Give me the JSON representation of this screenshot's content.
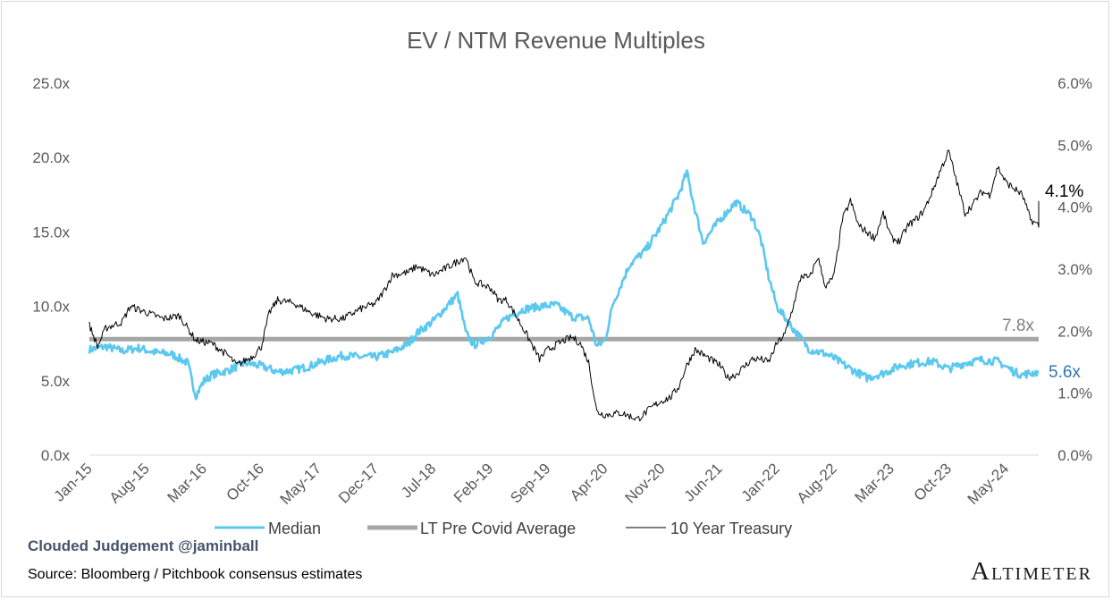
{
  "chart_data": {
    "type": "line",
    "title": "EV / NTM Revenue Multiples",
    "xlabel": "",
    "ylabel": "",
    "x_start": "Jan-15",
    "x_end": "Sep-24",
    "x_tick_labels": [
      "Jan-15",
      "Aug-15",
      "Mar-16",
      "Oct-16",
      "May-17",
      "Dec-17",
      "Jul-18",
      "Feb-19",
      "Sep-19",
      "Apr-20",
      "Nov-20",
      "Jun-21",
      "Jan-22",
      "Aug-22",
      "Mar-23",
      "Oct-23",
      "May-24"
    ],
    "y_left": {
      "range": [
        0,
        25
      ],
      "ticks": [
        "0.0x",
        "5.0x",
        "10.0x",
        "15.0x",
        "20.0x",
        "25.0x"
      ]
    },
    "y_right": {
      "range": [
        0,
        6
      ],
      "ticks": [
        "0.0%",
        "1.0%",
        "2.0%",
        "3.0%",
        "4.0%",
        "5.0%",
        "6.0%"
      ]
    },
    "grid": false,
    "legend_position": "bottom",
    "series": [
      {
        "name": "Median",
        "axis": "left",
        "color": "#5bc8ef",
        "points": [
          [
            "Jan-15",
            7.1
          ],
          [
            "Mar-15",
            7.3
          ],
          [
            "May-15",
            7.0
          ],
          [
            "Jul-15",
            7.2
          ],
          [
            "Sep-15",
            6.9
          ],
          [
            "Nov-15",
            6.8
          ],
          [
            "Jan-16",
            6.2
          ],
          [
            "Feb-16",
            4.0
          ],
          [
            "Mar-16",
            5.0
          ],
          [
            "Apr-16",
            5.4
          ],
          [
            "Jun-16",
            5.7
          ],
          [
            "Aug-16",
            6.2
          ],
          [
            "Oct-16",
            6.0
          ],
          [
            "Dec-16",
            5.6
          ],
          [
            "Feb-17",
            5.7
          ],
          [
            "Apr-17",
            6.0
          ],
          [
            "Jun-17",
            6.4
          ],
          [
            "Aug-17",
            6.7
          ],
          [
            "Oct-17",
            6.6
          ],
          [
            "Dec-17",
            6.6
          ],
          [
            "Feb-18",
            6.9
          ],
          [
            "Apr-18",
            7.5
          ],
          [
            "May-18",
            8.2
          ],
          [
            "Jul-18",
            9.0
          ],
          [
            "Sep-18",
            10.2
          ],
          [
            "Oct-18",
            10.8
          ],
          [
            "Nov-18",
            8.2
          ],
          [
            "Dec-18",
            7.4
          ],
          [
            "Feb-19",
            8.0
          ],
          [
            "Apr-19",
            9.2
          ],
          [
            "Jun-19",
            9.8
          ],
          [
            "Aug-19",
            10.0
          ],
          [
            "Oct-19",
            10.1
          ],
          [
            "Dec-19",
            9.3
          ],
          [
            "Feb-20",
            9.2
          ],
          [
            "Mar-20",
            7.3
          ],
          [
            "Apr-20",
            7.7
          ],
          [
            "May-20",
            10.2
          ],
          [
            "Jul-20",
            12.8
          ],
          [
            "Sep-20",
            13.8
          ],
          [
            "Nov-20",
            15.5
          ],
          [
            "Jan-21",
            17.5
          ],
          [
            "Feb-21",
            19.0
          ],
          [
            "Mar-21",
            16.5
          ],
          [
            "Apr-21",
            14.3
          ],
          [
            "Jun-21",
            15.8
          ],
          [
            "Aug-21",
            17.0
          ],
          [
            "Oct-21",
            16.0
          ],
          [
            "Nov-21",
            14.6
          ],
          [
            "Dec-21",
            12.0
          ],
          [
            "Jan-22",
            10.0
          ],
          [
            "Mar-22",
            8.5
          ],
          [
            "May-22",
            7.1
          ],
          [
            "Jul-22",
            6.8
          ],
          [
            "Aug-22",
            6.5
          ],
          [
            "Oct-22",
            5.8
          ],
          [
            "Dec-22",
            5.2
          ],
          [
            "Feb-23",
            5.5
          ],
          [
            "Apr-23",
            6.0
          ],
          [
            "Jun-23",
            6.2
          ],
          [
            "Aug-23",
            6.3
          ],
          [
            "Oct-23",
            5.8
          ],
          [
            "Dec-23",
            6.2
          ],
          [
            "Feb-24",
            6.4
          ],
          [
            "Apr-24",
            6.3
          ],
          [
            "Jun-24",
            5.6
          ],
          [
            "Jul-24",
            5.4
          ],
          [
            "Sep-24",
            5.6
          ]
        ]
      },
      {
        "name": "LT Pre Covid Average",
        "axis": "left",
        "color": "#a6a6a6",
        "points": [
          [
            "Jan-15",
            7.8
          ],
          [
            "Sep-24",
            7.8
          ]
        ]
      },
      {
        "name": "10 Year Treasury",
        "axis": "right",
        "color": "#000000",
        "points": [
          [
            "Jan-15",
            2.1
          ],
          [
            "Feb-15",
            1.75
          ],
          [
            "Mar-15",
            2.05
          ],
          [
            "May-15",
            2.15
          ],
          [
            "Jun-15",
            2.4
          ],
          [
            "Aug-15",
            2.3
          ],
          [
            "Oct-15",
            2.2
          ],
          [
            "Dec-15",
            2.25
          ],
          [
            "Feb-16",
            1.85
          ],
          [
            "Apr-16",
            1.8
          ],
          [
            "Jun-16",
            1.6
          ],
          [
            "Jul-16",
            1.45
          ],
          [
            "Sep-16",
            1.6
          ],
          [
            "Oct-16",
            1.75
          ],
          [
            "Nov-16",
            2.3
          ],
          [
            "Dec-16",
            2.5
          ],
          [
            "Feb-17",
            2.45
          ],
          [
            "Apr-17",
            2.3
          ],
          [
            "Jun-17",
            2.2
          ],
          [
            "Aug-17",
            2.2
          ],
          [
            "Oct-17",
            2.35
          ],
          [
            "Dec-17",
            2.45
          ],
          [
            "Jan-18",
            2.65
          ],
          [
            "Feb-18",
            2.9
          ],
          [
            "Apr-18",
            2.95
          ],
          [
            "May-18",
            3.05
          ],
          [
            "Jul-18",
            2.9
          ],
          [
            "Sep-18",
            3.05
          ],
          [
            "Nov-18",
            3.2
          ],
          [
            "Dec-18",
            2.8
          ],
          [
            "Feb-19",
            2.7
          ],
          [
            "Mar-19",
            2.5
          ],
          [
            "Apr-19",
            2.5
          ],
          [
            "Jun-19",
            2.05
          ],
          [
            "Aug-19",
            1.55
          ],
          [
            "Sep-19",
            1.7
          ],
          [
            "Nov-19",
            1.85
          ],
          [
            "Dec-19",
            1.9
          ],
          [
            "Jan-20",
            1.8
          ],
          [
            "Feb-20",
            1.5
          ],
          [
            "Mar-20",
            0.7
          ],
          [
            "Apr-20",
            0.65
          ],
          [
            "Jun-20",
            0.68
          ],
          [
            "Aug-20",
            0.58
          ],
          [
            "Oct-20",
            0.8
          ],
          [
            "Nov-20",
            0.88
          ],
          [
            "Dec-20",
            0.93
          ],
          [
            "Jan-21",
            1.1
          ],
          [
            "Feb-21",
            1.45
          ],
          [
            "Mar-21",
            1.7
          ],
          [
            "Apr-21",
            1.62
          ],
          [
            "Jun-21",
            1.45
          ],
          [
            "Jul-21",
            1.25
          ],
          [
            "Aug-21",
            1.3
          ],
          [
            "Oct-21",
            1.55
          ],
          [
            "Nov-21",
            1.55
          ],
          [
            "Dec-21",
            1.5
          ],
          [
            "Jan-22",
            1.8
          ],
          [
            "Feb-22",
            1.95
          ],
          [
            "Mar-22",
            2.4
          ],
          [
            "Apr-22",
            2.9
          ],
          [
            "May-22",
            2.85
          ],
          [
            "Jun-22",
            3.2
          ],
          [
            "Jul-22",
            2.7
          ],
          [
            "Aug-22",
            2.9
          ],
          [
            "Sep-22",
            3.8
          ],
          [
            "Oct-22",
            4.1
          ],
          [
            "Nov-22",
            3.7
          ],
          [
            "Dec-22",
            3.6
          ],
          [
            "Jan-23",
            3.5
          ],
          [
            "Feb-23",
            3.9
          ],
          [
            "Mar-23",
            3.5
          ],
          [
            "Apr-23",
            3.45
          ],
          [
            "May-23",
            3.7
          ],
          [
            "Jun-23",
            3.8
          ],
          [
            "Jul-23",
            3.95
          ],
          [
            "Aug-23",
            4.25
          ],
          [
            "Sep-23",
            4.6
          ],
          [
            "Oct-23",
            4.9
          ],
          [
            "Nov-23",
            4.4
          ],
          [
            "Dec-23",
            3.9
          ],
          [
            "Jan-24",
            4.05
          ],
          [
            "Feb-24",
            4.25
          ],
          [
            "Mar-24",
            4.2
          ],
          [
            "Apr-24",
            4.65
          ],
          [
            "May-24",
            4.4
          ],
          [
            "Jun-24",
            4.3
          ],
          [
            "Jul-24",
            4.2
          ],
          [
            "Aug-24",
            3.8
          ],
          [
            "Sep-24",
            3.7
          ],
          [
            "Sep-24",
            4.1
          ]
        ]
      }
    ],
    "annotations": [
      {
        "text": "4.1%",
        "series": "10 Year Treasury",
        "color": "#000000"
      },
      {
        "text": "7.8x",
        "series": "LT Pre Covid Average",
        "color": "#808080"
      },
      {
        "text": "5.6x",
        "series": "Median",
        "color": "#2e75b6"
      }
    ]
  },
  "footer": {
    "credit": "Clouded Judgement @jaminball",
    "source": "Source: Bloomberg / Pitchbook consensus estimates",
    "brand": "Altimeter"
  }
}
